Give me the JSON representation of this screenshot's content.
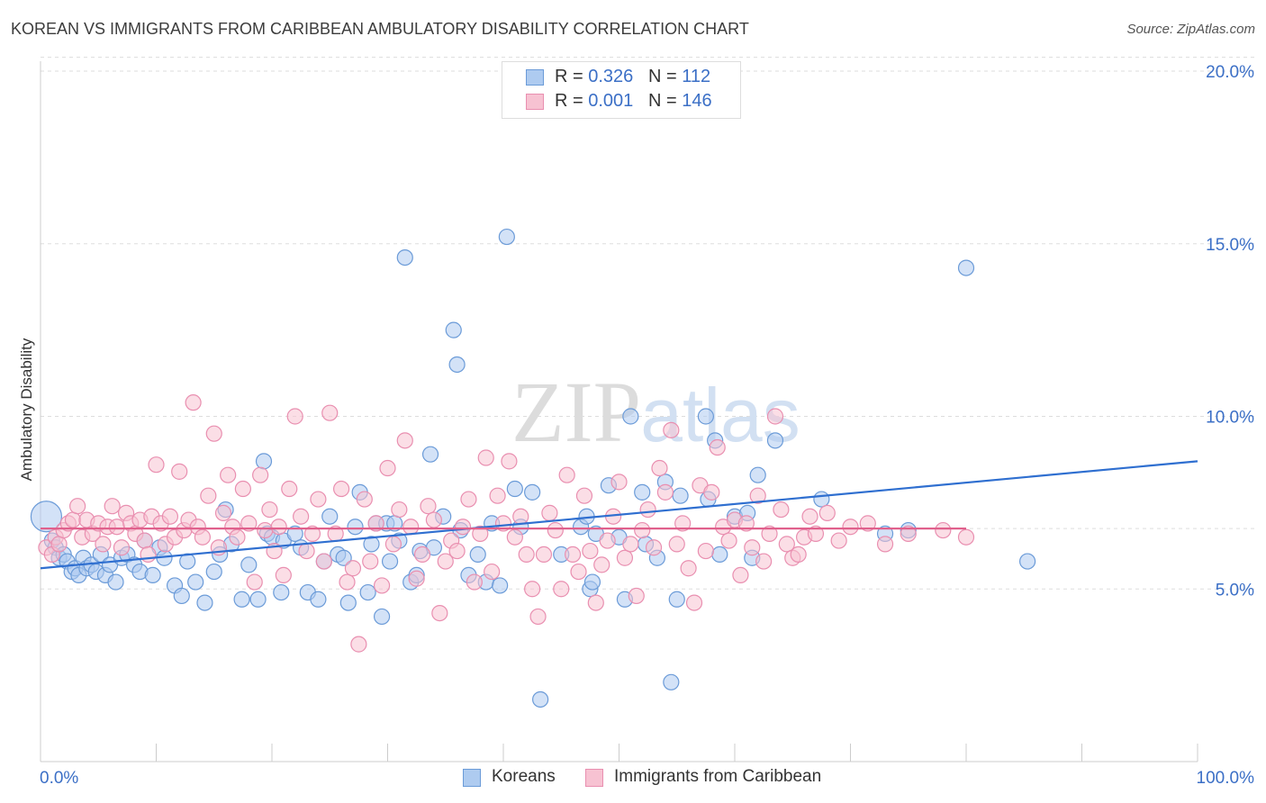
{
  "title": "KOREAN VS IMMIGRANTS FROM CARIBBEAN AMBULATORY DISABILITY CORRELATION CHART",
  "source": "Source: ZipAtlas.com",
  "watermark": {
    "zip": "ZIP",
    "atlas": "atlas"
  },
  "legend": {
    "rows": [
      {
        "r_label": "R =",
        "r_value": "0.326",
        "n_label": "N =",
        "n_value": "112"
      },
      {
        "r_label": "R =",
        "r_value": "0.001",
        "n_label": "N =",
        "n_value": "146"
      }
    ]
  },
  "colors": {
    "koreans_fill": "#aecbf0",
    "koreans_stroke": "#6b9bd8",
    "koreans_line": "#2f6fd0",
    "carib_fill": "#f7c2d2",
    "carib_stroke": "#e98fb0",
    "carib_line": "#e0608c",
    "tick_label": "#3b6fc6",
    "grid": "#dddddd"
  },
  "chart_data": {
    "type": "scatter",
    "title": "KOREAN VS IMMIGRANTS FROM CARIBBEAN AMBULATORY DISABILITY CORRELATION CHART",
    "xlabel": "",
    "ylabel": "Ambulatory Disability",
    "xlim": [
      0,
      100
    ],
    "ylim": [
      0,
      20.5
    ],
    "x_tick_labels": [
      "0.0%",
      "100.0%"
    ],
    "y_ticks": [
      5,
      10,
      15,
      20
    ],
    "y_tick_labels": [
      "5.0%",
      "10.0%",
      "15.0%",
      "20.0%"
    ],
    "grid": "horizontal dashed",
    "legend_position": "top-center",
    "series": [
      {
        "name": "Koreans",
        "r": 0.326,
        "n": 112,
        "trend": {
          "x": [
            0,
            100
          ],
          "y": [
            5.6,
            8.7
          ]
        },
        "points": [
          [
            0.5,
            7.1
          ],
          [
            1,
            6.4
          ],
          [
            1.3,
            6.2
          ],
          [
            1.6,
            5.9
          ],
          [
            2,
            6.0
          ],
          [
            2.3,
            5.8
          ],
          [
            2.7,
            5.5
          ],
          [
            3,
            5.6
          ],
          [
            3.3,
            5.4
          ],
          [
            3.7,
            5.9
          ],
          [
            4,
            5.6
          ],
          [
            4.4,
            5.7
          ],
          [
            4.8,
            5.5
          ],
          [
            5.2,
            6.0
          ],
          [
            5.6,
            5.4
          ],
          [
            6,
            5.7
          ],
          [
            6.5,
            5.2
          ],
          [
            7,
            5.9
          ],
          [
            7.5,
            6.0
          ],
          [
            8.1,
            5.7
          ],
          [
            8.6,
            5.5
          ],
          [
            9,
            6.4
          ],
          [
            9.7,
            5.4
          ],
          [
            10.3,
            6.2
          ],
          [
            10.7,
            5.9
          ],
          [
            11.6,
            5.1
          ],
          [
            12.2,
            4.8
          ],
          [
            12.7,
            5.8
          ],
          [
            13.4,
            5.2
          ],
          [
            14.2,
            4.6
          ],
          [
            15,
            5.5
          ],
          [
            15.5,
            6.0
          ],
          [
            16,
            7.3
          ],
          [
            16.5,
            6.3
          ],
          [
            17.4,
            4.7
          ],
          [
            18,
            5.7
          ],
          [
            18.8,
            4.7
          ],
          [
            19.3,
            8.7
          ],
          [
            19.6,
            6.6
          ],
          [
            20,
            6.5
          ],
          [
            20.8,
            4.9
          ],
          [
            21,
            6.4
          ],
          [
            22,
            6.6
          ],
          [
            22.5,
            6.2
          ],
          [
            23.1,
            4.9
          ],
          [
            24,
            4.7
          ],
          [
            24.5,
            5.8
          ],
          [
            25,
            7.1
          ],
          [
            25.7,
            6.0
          ],
          [
            26.2,
            5.9
          ],
          [
            26.6,
            4.6
          ],
          [
            27.2,
            6.8
          ],
          [
            27.6,
            7.8
          ],
          [
            28.3,
            4.9
          ],
          [
            28.6,
            6.3
          ],
          [
            29,
            6.9
          ],
          [
            29.5,
            4.2
          ],
          [
            29.9,
            6.9
          ],
          [
            30.2,
            5.8
          ],
          [
            30.6,
            6.9
          ],
          [
            31,
            6.4
          ],
          [
            31.5,
            14.6
          ],
          [
            32,
            5.2
          ],
          [
            32.5,
            5.4
          ],
          [
            32.8,
            6.1
          ],
          [
            33.7,
            8.9
          ],
          [
            34,
            6.2
          ],
          [
            34.8,
            7.1
          ],
          [
            35.7,
            12.5
          ],
          [
            36,
            11.5
          ],
          [
            36.3,
            6.7
          ],
          [
            37,
            5.4
          ],
          [
            37.8,
            6.0
          ],
          [
            38.5,
            5.2
          ],
          [
            39,
            6.9
          ],
          [
            39.7,
            5.1
          ],
          [
            40.3,
            15.2
          ],
          [
            41,
            7.9
          ],
          [
            41.5,
            6.8
          ],
          [
            42.5,
            7.8
          ],
          [
            43.2,
            1.8
          ],
          [
            45,
            6.0
          ],
          [
            46.7,
            6.8
          ],
          [
            47.2,
            7.1
          ],
          [
            47.5,
            5.0
          ],
          [
            47.7,
            5.2
          ],
          [
            48,
            6.6
          ],
          [
            49.1,
            8.0
          ],
          [
            50,
            6.5
          ],
          [
            50.5,
            4.7
          ],
          [
            51,
            10.0
          ],
          [
            52,
            7.8
          ],
          [
            52.3,
            6.3
          ],
          [
            53.3,
            5.9
          ],
          [
            54,
            8.1
          ],
          [
            54.5,
            2.3
          ],
          [
            55,
            4.7
          ],
          [
            55.3,
            7.7
          ],
          [
            57.5,
            10.0
          ],
          [
            57.7,
            7.6
          ],
          [
            58.3,
            9.3
          ],
          [
            58.7,
            6.0
          ],
          [
            60,
            7.1
          ],
          [
            61.1,
            7.2
          ],
          [
            61.5,
            5.9
          ],
          [
            62,
            8.3
          ],
          [
            63.5,
            9.3
          ],
          [
            67.5,
            7.6
          ],
          [
            73,
            6.6
          ],
          [
            75,
            6.7
          ],
          [
            80,
            14.3
          ],
          [
            85.3,
            5.8
          ]
        ]
      },
      {
        "name": "Immigrants from Caribbean",
        "r": 0.001,
        "n": 146,
        "trend": {
          "x": [
            0,
            80
          ],
          "y": [
            6.75,
            6.75
          ]
        },
        "points": [
          [
            0.5,
            6.2
          ],
          [
            1,
            6.0
          ],
          [
            1.3,
            6.5
          ],
          [
            1.6,
            6.3
          ],
          [
            2,
            6.7
          ],
          [
            2.4,
            6.9
          ],
          [
            2.8,
            7.0
          ],
          [
            3.2,
            7.4
          ],
          [
            3.6,
            6.5
          ],
          [
            4,
            7.0
          ],
          [
            4.5,
            6.6
          ],
          [
            5,
            6.9
          ],
          [
            5.4,
            6.3
          ],
          [
            5.8,
            6.8
          ],
          [
            6.2,
            7.4
          ],
          [
            6.6,
            6.8
          ],
          [
            7,
            6.2
          ],
          [
            7.4,
            7.2
          ],
          [
            7.8,
            6.9
          ],
          [
            8.2,
            6.6
          ],
          [
            8.6,
            7.0
          ],
          [
            9,
            6.4
          ],
          [
            9.3,
            6.0
          ],
          [
            9.6,
            7.1
          ],
          [
            10,
            8.6
          ],
          [
            10.4,
            6.9
          ],
          [
            10.8,
            6.3
          ],
          [
            11.2,
            7.1
          ],
          [
            11.6,
            6.5
          ],
          [
            12,
            8.4
          ],
          [
            12.4,
            6.7
          ],
          [
            12.8,
            7.0
          ],
          [
            13.2,
            10.4
          ],
          [
            13.6,
            6.8
          ],
          [
            14,
            6.5
          ],
          [
            14.5,
            7.7
          ],
          [
            15,
            9.5
          ],
          [
            15.4,
            6.2
          ],
          [
            15.8,
            7.2
          ],
          [
            16.2,
            8.3
          ],
          [
            16.6,
            6.8
          ],
          [
            17,
            6.5
          ],
          [
            17.5,
            7.9
          ],
          [
            18,
            6.9
          ],
          [
            18.5,
            5.2
          ],
          [
            19,
            8.3
          ],
          [
            19.4,
            6.7
          ],
          [
            19.8,
            7.3
          ],
          [
            20.2,
            6.1
          ],
          [
            20.6,
            6.8
          ],
          [
            21,
            5.4
          ],
          [
            21.5,
            7.9
          ],
          [
            22,
            10.0
          ],
          [
            22.5,
            7.1
          ],
          [
            23,
            6.1
          ],
          [
            23.5,
            6.6
          ],
          [
            24,
            7.6
          ],
          [
            24.5,
            5.8
          ],
          [
            25,
            10.1
          ],
          [
            25.5,
            6.6
          ],
          [
            26,
            7.9
          ],
          [
            26.5,
            5.2
          ],
          [
            27,
            5.6
          ],
          [
            27.5,
            3.4
          ],
          [
            28,
            7.6
          ],
          [
            28.5,
            5.8
          ],
          [
            29,
            6.9
          ],
          [
            29.5,
            5.1
          ],
          [
            30,
            8.5
          ],
          [
            30.5,
            6.3
          ],
          [
            31,
            7.3
          ],
          [
            31.5,
            9.3
          ],
          [
            32,
            6.8
          ],
          [
            32.5,
            5.3
          ],
          [
            33,
            6.0
          ],
          [
            33.5,
            7.4
          ],
          [
            34,
            7.0
          ],
          [
            34.5,
            4.3
          ],
          [
            35,
            5.8
          ],
          [
            35.5,
            6.4
          ],
          [
            36,
            6.1
          ],
          [
            36.5,
            6.8
          ],
          [
            37,
            7.6
          ],
          [
            37.5,
            5.2
          ],
          [
            38,
            6.6
          ],
          [
            38.5,
            8.8
          ],
          [
            39,
            5.5
          ],
          [
            39.5,
            7.7
          ],
          [
            40,
            6.9
          ],
          [
            40.5,
            8.7
          ],
          [
            41,
            6.5
          ],
          [
            41.5,
            7.1
          ],
          [
            42,
            6.0
          ],
          [
            42.5,
            5.0
          ],
          [
            43,
            4.2
          ],
          [
            43.5,
            6.0
          ],
          [
            44,
            7.2
          ],
          [
            44.5,
            6.7
          ],
          [
            45,
            5.0
          ],
          [
            45.5,
            8.3
          ],
          [
            46,
            6.0
          ],
          [
            46.5,
            5.5
          ],
          [
            47,
            7.7
          ],
          [
            47.5,
            6.1
          ],
          [
            48,
            4.6
          ],
          [
            48.5,
            5.7
          ],
          [
            49,
            6.4
          ],
          [
            49.5,
            7.1
          ],
          [
            50,
            8.1
          ],
          [
            50.5,
            5.9
          ],
          [
            51,
            6.3
          ],
          [
            51.5,
            4.8
          ],
          [
            52,
            6.7
          ],
          [
            52.5,
            7.3
          ],
          [
            53,
            6.2
          ],
          [
            53.5,
            8.5
          ],
          [
            54,
            7.8
          ],
          [
            54.5,
            9.6
          ],
          [
            55,
            6.3
          ],
          [
            55.5,
            6.9
          ],
          [
            56,
            5.6
          ],
          [
            56.5,
            4.6
          ],
          [
            57,
            8.0
          ],
          [
            57.5,
            6.1
          ],
          [
            58,
            7.8
          ],
          [
            58.5,
            9.1
          ],
          [
            59,
            6.8
          ],
          [
            59.5,
            6.4
          ],
          [
            60,
            7.0
          ],
          [
            60.5,
            5.4
          ],
          [
            61,
            6.9
          ],
          [
            61.5,
            6.2
          ],
          [
            62,
            7.7
          ],
          [
            62.5,
            5.8
          ],
          [
            63,
            6.6
          ],
          [
            63.5,
            10.0
          ],
          [
            64,
            7.3
          ],
          [
            64.5,
            6.3
          ],
          [
            65,
            5.9
          ],
          [
            65.5,
            6.0
          ],
          [
            66,
            6.5
          ],
          [
            66.5,
            7.1
          ],
          [
            67,
            6.6
          ],
          [
            68,
            7.2
          ],
          [
            69,
            6.4
          ],
          [
            70,
            6.8
          ],
          [
            71.5,
            6.9
          ],
          [
            73,
            6.3
          ],
          [
            75,
            6.6
          ],
          [
            78,
            6.7
          ],
          [
            80,
            6.5
          ]
        ]
      }
    ]
  },
  "bottom_legend": {
    "items": [
      "Koreans",
      "Immigrants from Caribbean"
    ]
  }
}
